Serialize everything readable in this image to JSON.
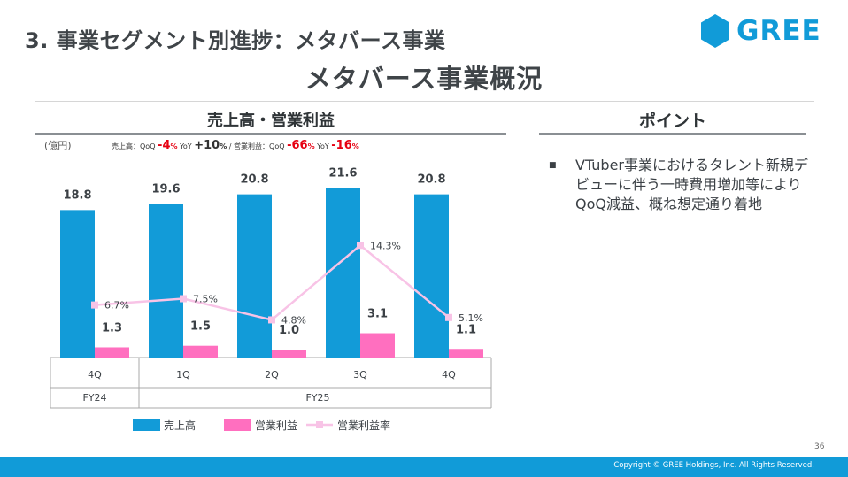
{
  "header": {
    "section_title": "3. 事業セグメント別進捗：メタバース事業",
    "main_title": "メタバース事業概況",
    "logo_text": "GREE"
  },
  "chart_panel": {
    "title": "売上高・営業利益",
    "unit_label": "(億円)",
    "summary": {
      "sales_label": "売上高：",
      "qoq_label": "QoQ",
      "yoy_label": "YoY",
      "sales_qoq": "-4",
      "sales_yoy": "+10",
      "op_label": "/ 営業利益：",
      "op_qoq": "-66",
      "op_yoy": "-16",
      "pct": "%"
    }
  },
  "chart_data": {
    "type": "bar",
    "title": "売上高・営業利益",
    "ylabel": "(億円)",
    "categories": [
      "4Q",
      "1Q",
      "2Q",
      "3Q",
      "4Q"
    ],
    "groups": [
      {
        "label": "FY24",
        "span": 1
      },
      {
        "label": "FY25",
        "span": 4
      }
    ],
    "series": [
      {
        "name": "売上高",
        "kind": "bar",
        "color": "#129bd8",
        "values": [
          18.8,
          19.6,
          20.8,
          21.6,
          20.8
        ],
        "labels": [
          "18.8",
          "19.6",
          "20.8",
          "21.6",
          "20.8"
        ]
      },
      {
        "name": "営業利益",
        "kind": "bar",
        "color": "#ff6fbf",
        "values": [
          1.3,
          1.5,
          1.0,
          3.1,
          1.1
        ],
        "labels": [
          "1.3",
          "1.5",
          "1.0",
          "3.1",
          "1.1"
        ]
      },
      {
        "name": "営業利益率",
        "kind": "line",
        "color": "#f8c3e6",
        "unit": "%",
        "values": [
          6.7,
          7.5,
          4.8,
          14.3,
          5.1
        ],
        "labels": [
          "6.7%",
          "7.5%",
          "4.8%",
          "14.3%",
          "5.1%"
        ]
      }
    ],
    "ylim": [
      0,
      22
    ],
    "rate_ylim": [
      0,
      22
    ],
    "legend": "bottom"
  },
  "points": {
    "title": "ポイント",
    "bullets": [
      "VTuber事業におけるタレント新規デビューに伴う一時費用増加等によりQoQ減益、概ね想定通り着地"
    ]
  },
  "footer": {
    "page_number": "36",
    "copyright": "Copyright © GREE Holdings, Inc. All Rights Reserved."
  },
  "colors": {
    "accent": "#119bd8",
    "sales_bar": "#129bd8",
    "profit_bar": "#ff6fbf",
    "rate_line": "#f8c3e6",
    "highlight_red": "#e60012"
  }
}
